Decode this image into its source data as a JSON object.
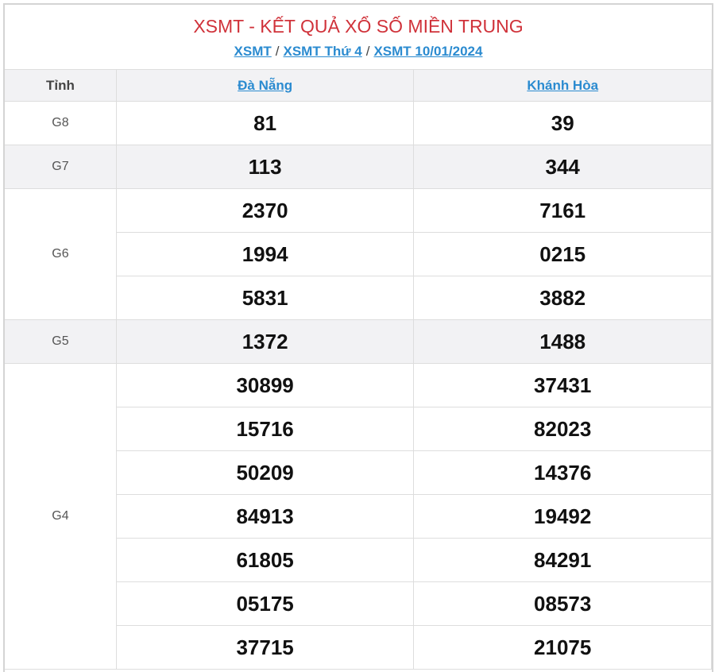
{
  "title": "XSMT - KẾT QUẢ XỔ SỐ MIỀN TRUNG",
  "breadcrumb": [
    {
      "label": "XSMT"
    },
    {
      "label": "XSMT Thứ 4"
    },
    {
      "label": "XSMT 10/01/2024"
    }
  ],
  "breadcrumb_separator": "/",
  "table": {
    "header": {
      "tinh": "Tỉnh",
      "provinces": [
        "Đà Nẵng",
        "Khánh Hòa"
      ]
    },
    "prizes": [
      {
        "name": "G8",
        "rows": [
          [
            "81",
            "39"
          ]
        ]
      },
      {
        "name": "G7",
        "rows": [
          [
            "113",
            "344"
          ]
        ]
      },
      {
        "name": "G6",
        "rows": [
          [
            "2370",
            "7161"
          ],
          [
            "1994",
            "0215"
          ],
          [
            "5831",
            "3882"
          ]
        ]
      },
      {
        "name": "G5",
        "rows": [
          [
            "1372",
            "1488"
          ]
        ]
      },
      {
        "name": "G4",
        "rows": [
          [
            "30899",
            "37431"
          ],
          [
            "15716",
            "82023"
          ],
          [
            "50209",
            "14376"
          ],
          [
            "84913",
            "19492"
          ],
          [
            "61805",
            "84291"
          ],
          [
            "05175",
            "08573"
          ],
          [
            "37715",
            "21075"
          ]
        ]
      }
    ]
  },
  "colors": {
    "title": "#d0323a",
    "link": "#2b8bd0",
    "stripe": "#f2f2f4"
  }
}
